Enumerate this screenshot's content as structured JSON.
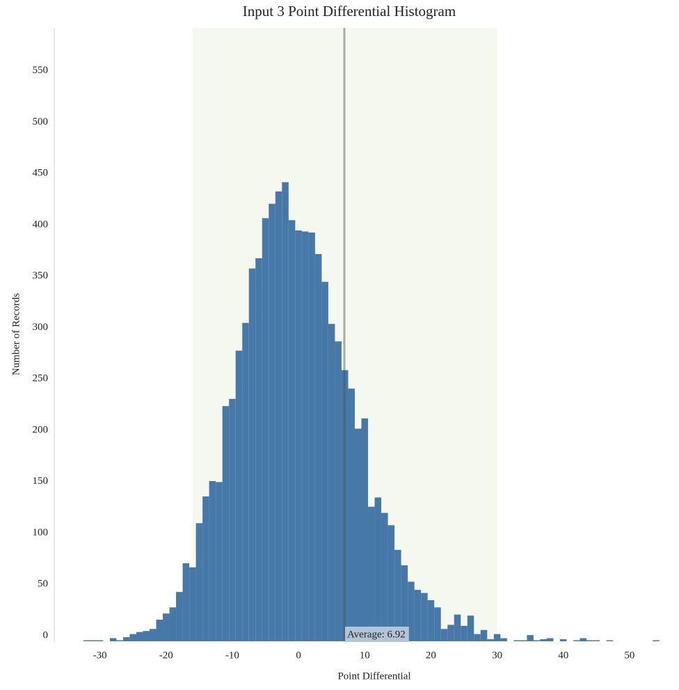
{
  "chart_data": {
    "type": "histogram",
    "title": "Input 3 Point Differential Histogram",
    "x_label": "Point Differential",
    "y_label": "Number of Records",
    "bins": [
      -32.5,
      -31.5,
      -30.5,
      -29.5,
      -28.5,
      -27.5,
      -26.5,
      -25.5,
      -24.5,
      -23.5,
      -22.5,
      -21.5,
      -20.5,
      -19.5,
      -18.5,
      -17.5,
      -16.5,
      -15.5,
      -14.5,
      -13.5,
      -12.5,
      -11.5,
      -10.5,
      -9.5,
      -8.5,
      -7.5,
      -6.5,
      -5.5,
      -4.5,
      -3.5,
      -2.5,
      -1.5,
      -0.5,
      0.5,
      1.5,
      2.5,
      3.5,
      4.5,
      5.5,
      6.5,
      7.5,
      8.5,
      9.5,
      10.5,
      11.5,
      12.5,
      13.5,
      14.5,
      15.5,
      16.5,
      17.5,
      18.5,
      19.5,
      20.5,
      21.5,
      22.5,
      23.5,
      24.5,
      25.5,
      26.5,
      27.5,
      28.5,
      29.5,
      30.5,
      31.5,
      32.5,
      33.5,
      34.5,
      35.5,
      36.5,
      37.5,
      38.5,
      39.5,
      40.5,
      41.5,
      42.5,
      43.5,
      44.5,
      45.5,
      46.5,
      47.5,
      48.5,
      49.5,
      50.5,
      51.5,
      52.5,
      53.5,
      54.5
    ],
    "values": [
      1,
      1,
      1,
      0,
      3,
      1,
      4,
      7,
      9,
      10,
      12,
      21,
      27,
      33,
      48,
      76,
      72,
      115,
      141,
      156,
      155,
      229,
      236,
      283,
      310,
      363,
      373,
      412,
      426,
      438,
      447,
      410,
      400,
      399,
      398,
      377,
      350,
      309,
      292,
      264,
      246,
      207,
      217,
      131,
      140,
      125,
      113,
      89,
      74,
      58,
      50,
      47,
      40,
      33,
      12,
      16,
      26,
      15,
      25,
      7,
      11,
      2,
      7,
      3,
      0,
      1,
      1,
      6,
      1,
      2,
      3,
      0,
      2,
      0,
      1,
      3,
      1,
      1,
      0,
      1,
      0,
      0,
      0,
      0,
      0,
      0,
      1
    ],
    "color": "#4679a8",
    "xlim": [
      -37,
      56
    ],
    "xticks": [
      -30,
      -20,
      -10,
      0,
      10,
      20,
      30,
      40,
      50
    ],
    "ylim": [
      0,
      600
    ],
    "yticks": [
      0,
      50,
      100,
      150,
      200,
      250,
      300,
      350,
      400,
      450,
      500,
      550
    ],
    "shaded_range": [
      -16,
      30
    ],
    "shade_color": "#f5f8ee",
    "average": {
      "value": 6.92,
      "label": "Average: 6.92"
    },
    "grid": false
  }
}
